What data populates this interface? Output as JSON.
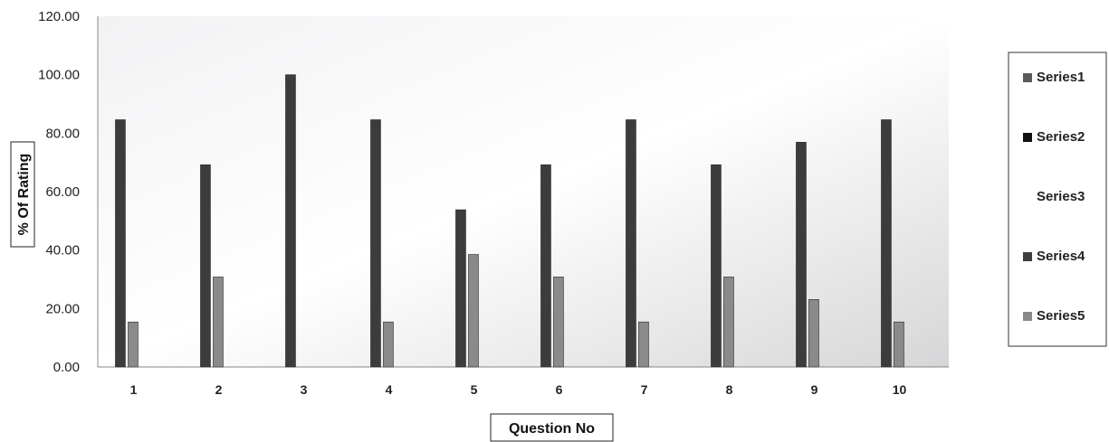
{
  "chart_data": {
    "type": "bar",
    "title": "",
    "xlabel": "Question No",
    "ylabel": "% Of Rating",
    "ylim": [
      0,
      120
    ],
    "yticks": [
      "0.00",
      "20.00",
      "40.00",
      "60.00",
      "80.00",
      "100.00",
      "120.00"
    ],
    "categories": [
      "1",
      "2",
      "3",
      "4",
      "5",
      "6",
      "7",
      "8",
      "9",
      "10"
    ],
    "legend_position": "right",
    "grid": false,
    "series": [
      {
        "name": "Series1",
        "color": "#5a5a5a",
        "values": [
          0,
          0,
          0,
          0,
          0,
          0,
          0,
          0,
          0,
          0
        ]
      },
      {
        "name": "Series2",
        "color": "#111111",
        "values": [
          0,
          0,
          0,
          0,
          0,
          0,
          0,
          0,
          0,
          0
        ]
      },
      {
        "name": "Series3",
        "color": "#ffffff",
        "values": [
          0,
          0,
          0,
          0,
          0,
          0,
          0,
          0,
          0,
          0
        ]
      },
      {
        "name": "Series4",
        "color": "#3c3c3c",
        "values": [
          84.6,
          69.2,
          100,
          84.6,
          53.8,
          69.2,
          84.6,
          69.2,
          76.9,
          84.6
        ]
      },
      {
        "name": "Series5",
        "color": "#8a8a8a",
        "values": [
          15.4,
          30.8,
          0,
          15.4,
          38.5,
          30.8,
          15.4,
          30.8,
          23.1,
          15.4
        ]
      }
    ]
  }
}
